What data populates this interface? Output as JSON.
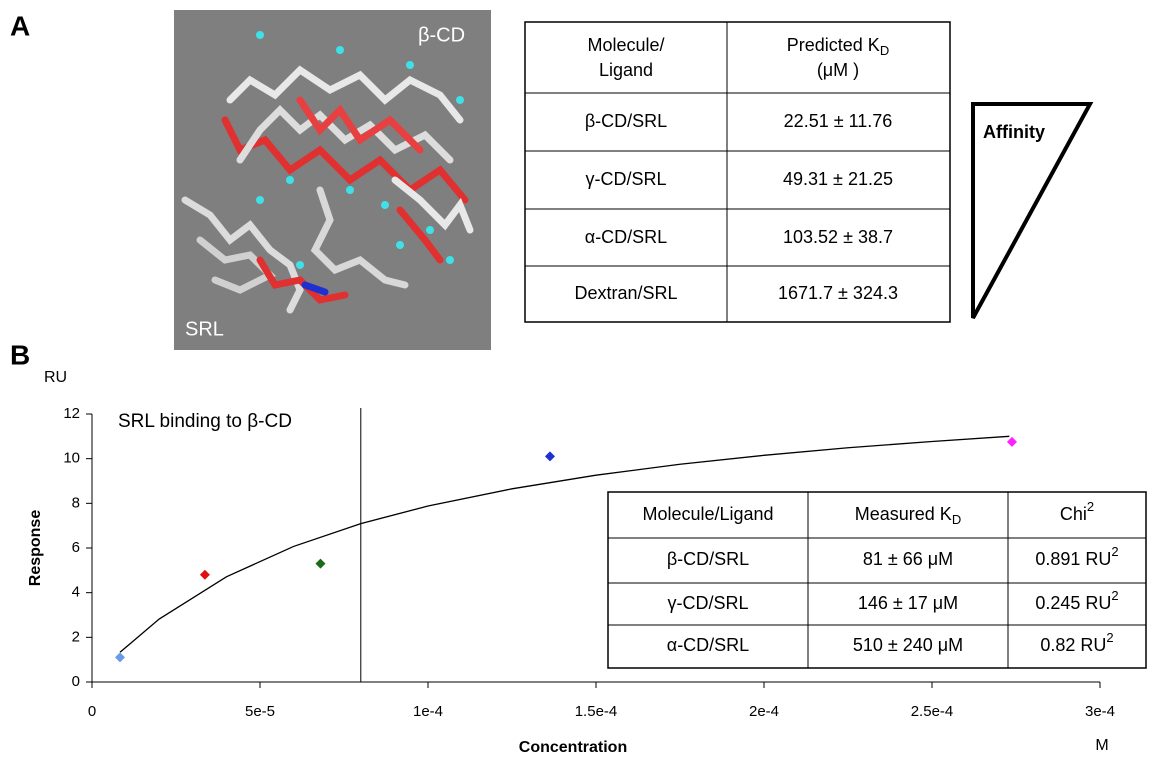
{
  "panel_labels": [
    "A",
    "B"
  ],
  "panel_a": {
    "structure_labels": [
      "β-CD",
      "SRL"
    ],
    "table": {
      "header": [
        {
          "lines": [
            "Molecule/",
            "Ligand"
          ]
        },
        {
          "text": "Predicted K",
          "sub": "D",
          "line2": "(μM )"
        }
      ],
      "rows": [
        [
          "β-CD/SRL",
          "22.51 ± 11.76"
        ],
        [
          "γ-CD/SRL",
          "49.31 ± 21.25"
        ],
        [
          "α-CD/SRL",
          "103.52 ± 38.7"
        ],
        [
          "Dextran/SRL",
          "1671.7 ± 324.3"
        ]
      ]
    },
    "affinity_label": "Affinity"
  },
  "chart_data": {
    "type": "scatter",
    "title": "SRL binding to β-CD",
    "x_label": "Concentration",
    "y_label": "Response",
    "x_unit": "M",
    "y_unit": "RU",
    "xlim": [
      0,
      0.0003
    ],
    "ylim": [
      0,
      12
    ],
    "xticks": [
      0,
      {
        "value": 5e-05,
        "label": "5e-5"
      },
      {
        "value": 0.0001,
        "label": "1e-4"
      },
      {
        "value": 0.00015,
        "label": "1.5e-4"
      },
      {
        "value": 0.0002,
        "label": "2e-4"
      },
      {
        "value": 0.00025,
        "label": "2.5e-4"
      },
      {
        "value": 0.0003,
        "label": "3e-4"
      }
    ],
    "yticks": [
      0,
      2,
      4,
      6,
      8,
      10,
      12
    ],
    "vertical_line_x": 8e-05,
    "series": [
      {
        "type": "line",
        "color": "#000000",
        "x": [
          8.33e-06,
          2e-05,
          4e-05,
          6e-05,
          8e-05,
          0.0001,
          0.000125,
          0.00015,
          0.000175,
          0.0002,
          0.000225,
          0.00025,
          0.000273
        ],
        "values": [
          1.33,
          2.82,
          4.71,
          6.07,
          7.09,
          7.88,
          8.65,
          9.26,
          9.75,
          10.15,
          10.49,
          10.77,
          11.0
        ]
      },
      {
        "type": "scatter",
        "x": [
          8.33e-06,
          3.36e-05,
          6.8e-05,
          0.0001363,
          0.0002738
        ],
        "values": [
          1.1,
          4.8,
          5.3,
          10.1,
          10.75
        ],
        "colors": [
          "#6b9be8",
          "#e01010",
          "#1a6b1a",
          "#2030d0",
          "#ff20ff"
        ]
      }
    ]
  },
  "results_table": {
    "header": [
      "Molecule/Ligand",
      {
        "text": "Measured K",
        "sub": "D"
      },
      {
        "text": "Chi",
        "sup": "2"
      }
    ],
    "rows": [
      [
        "β-CD/SRL",
        "81 ± 66 μM",
        {
          "text": "0.891 RU",
          "sup": "2"
        }
      ],
      [
        "γ-CD/SRL",
        "146 ± 17 μM",
        {
          "text": "0.245 RU",
          "sup": "2"
        }
      ],
      [
        "α-CD/SRL",
        "510 ± 240 μM",
        {
          "text": "0.82 RU",
          "sup": "2"
        }
      ]
    ]
  }
}
